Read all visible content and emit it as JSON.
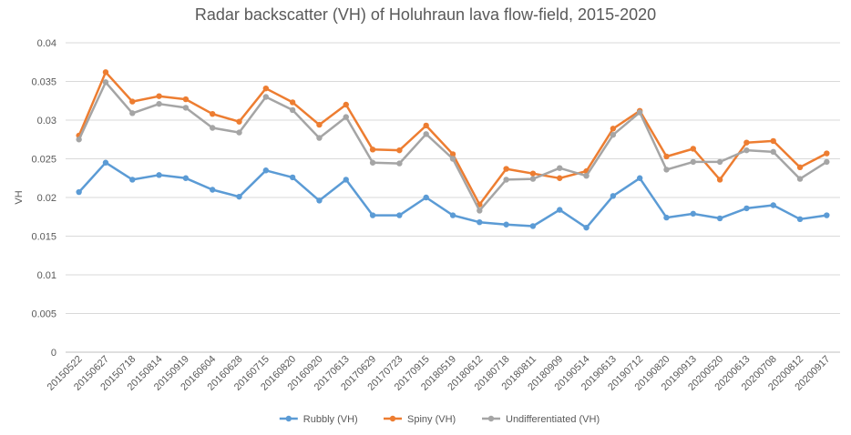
{
  "chart_data": {
    "type": "line",
    "title": "Radar backscatter (VH) of Holuhraun lava flow-field, 2015-2020",
    "xlabel": "",
    "ylabel": "VH",
    "ylim": [
      0,
      0.04
    ],
    "yticks": [
      "0",
      "0.005",
      "0.01",
      "0.015",
      "0.02",
      "0.025",
      "0.03",
      "0.035",
      "0.04"
    ],
    "grid": true,
    "legend_position": "bottom",
    "categories": [
      "20150522",
      "20150627",
      "20150718",
      "20150814",
      "20150919",
      "20160604",
      "20160628",
      "20160715",
      "20160820",
      "20160920",
      "20170613",
      "20170629",
      "20170723",
      "20170915",
      "20180519",
      "20180612",
      "20180718",
      "20180811",
      "20180909",
      "20190514",
      "20190613",
      "20190712",
      "20190820",
      "20190913",
      "20200520",
      "20200613",
      "20200708",
      "20200812",
      "20200917"
    ],
    "series": [
      {
        "name": "Rubbly (VH)",
        "color": "#5B9BD5",
        "values": [
          0.0207,
          0.0245,
          0.0223,
          0.0229,
          0.0225,
          0.021,
          0.0201,
          0.0235,
          0.0226,
          0.0196,
          0.0223,
          0.0177,
          0.0177,
          0.02,
          0.0177,
          0.0168,
          0.0165,
          0.0163,
          0.0184,
          0.0161,
          0.0202,
          0.0225,
          0.0174,
          0.0179,
          0.0173,
          0.0186,
          0.019,
          0.0172,
          0.0177
        ]
      },
      {
        "name": "Spiny (VH)",
        "color": "#ED7D31",
        "values": [
          0.028,
          0.0362,
          0.0324,
          0.0331,
          0.0327,
          0.0308,
          0.0298,
          0.0341,
          0.0323,
          0.0294,
          0.032,
          0.0262,
          0.0261,
          0.0293,
          0.0256,
          0.0191,
          0.0237,
          0.0231,
          0.0225,
          0.0234,
          0.0289,
          0.0312,
          0.0253,
          0.0263,
          0.0223,
          0.0271,
          0.0273,
          0.0239,
          0.0257
        ]
      },
      {
        "name": "Undifferentiated (VH)",
        "color": "#A5A5A5",
        "values": [
          0.0275,
          0.0349,
          0.0309,
          0.0321,
          0.0316,
          0.029,
          0.0284,
          0.033,
          0.0313,
          0.0277,
          0.0304,
          0.0245,
          0.0244,
          0.0282,
          0.025,
          0.0183,
          0.0223,
          0.0224,
          0.0238,
          0.0228,
          0.0281,
          0.031,
          0.0236,
          0.0246,
          0.0246,
          0.0261,
          0.0259,
          0.0224,
          0.0246
        ]
      }
    ]
  }
}
